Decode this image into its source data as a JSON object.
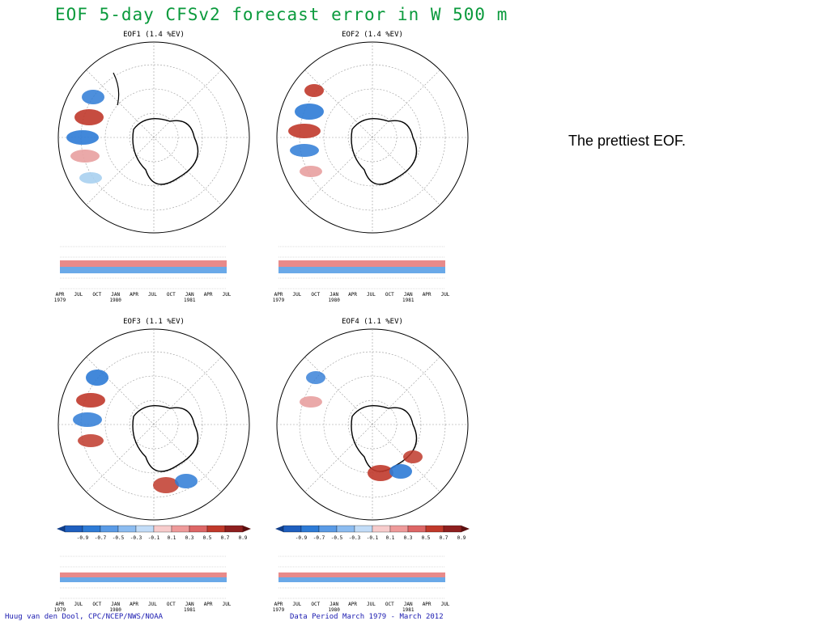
{
  "figure": {
    "title": "EOF 5-day CFSv2 forecast error in W 500 m",
    "credit_left": "Huug van den Dool, CPC/NCEP/NWS/NOAA",
    "credit_right": "Data Period March 1979 - March 2012"
  },
  "panels": [
    {
      "label": "EOF1 (1.4 %EV)"
    },
    {
      "label": "EOF2 (1.4 %EV)"
    },
    {
      "label": "EOF3 (1.1 %EV)"
    },
    {
      "label": "EOF4 (1.1 %EV)"
    }
  ],
  "timeseries_axis": {
    "months": [
      "APR",
      "JUL",
      "OCT",
      "JAN",
      "APR",
      "JUL",
      "OCT",
      "JAN",
      "APR",
      "JUL"
    ],
    "years": [
      "1979",
      "1980",
      "1981"
    ]
  },
  "colorbar_ticks": [
    "-0.9",
    "-0.7",
    "-0.5",
    "-0.3",
    "-0.1",
    "0.1",
    "0.3",
    "0.5",
    "0.7",
    "0.9"
  ],
  "colorbar_ticks_left": [
    "-0.9",
    "-0.7",
    "-0.5",
    "-0.3",
    "-0.1",
    "0.1",
    "0.3",
    "0.5",
    "0.7",
    "0.9"
  ],
  "colors": {
    "title": "#0a9a3c",
    "positive": "#c0392b",
    "negative": "#2e7bd6",
    "credit": "#1a1ab0"
  },
  "note": "The prettiest EOF."
}
